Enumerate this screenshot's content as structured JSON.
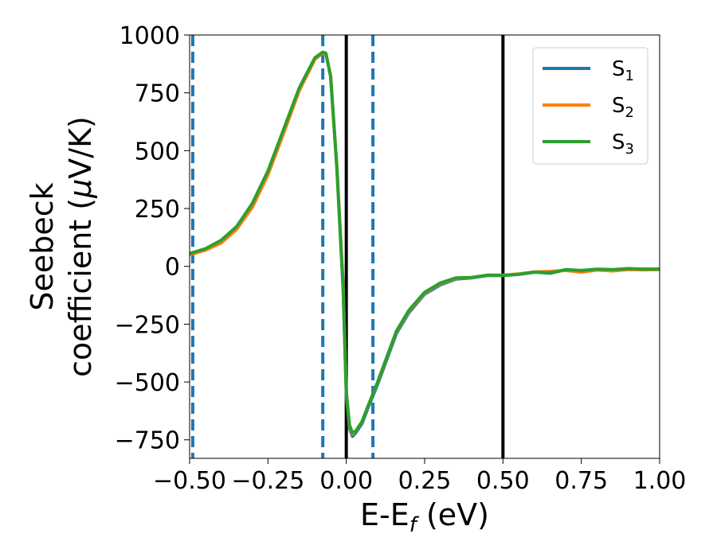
{
  "chart_data": {
    "type": "line",
    "xlabel_main": "E-E",
    "xlabel_sub": "f",
    "xlabel_rest": " (eV)",
    "ylabel_line1": "Seebeck",
    "ylabel_line2_pre": "coefficient  (",
    "ylabel_line2_mu": "μ",
    "ylabel_line2_post": "V/K)",
    "xlim": [
      -0.5,
      1.0
    ],
    "ylim": [
      -830,
      1000
    ],
    "xticks": [
      -0.5,
      -0.25,
      0.0,
      0.25,
      0.5,
      0.75,
      1.0
    ],
    "xtick_labels": [
      "−0.50",
      "−0.25",
      "0.00",
      "0.25",
      "0.50",
      "0.75",
      "1.00"
    ],
    "yticks": [
      -750,
      -500,
      -250,
      0,
      250,
      500,
      750,
      1000
    ],
    "ytick_labels": [
      "−750",
      "−500",
      "−250",
      "0",
      "250",
      "500",
      "750",
      "1000"
    ],
    "vlines_solid": [
      0.0,
      0.5
    ],
    "vlines_dashed": [
      -0.49,
      -0.075,
      0.085
    ],
    "vline_dashed_color": "#1f77b4",
    "vline_solid_color": "#000000",
    "legend_position": "top-right",
    "grid": false,
    "series": [
      {
        "name": "S",
        "sub": "1",
        "color": "#1f77b4",
        "x": [
          -0.5,
          -0.45,
          -0.4,
          -0.35,
          -0.3,
          -0.25,
          -0.2,
          -0.15,
          -0.1,
          -0.075,
          -0.065,
          -0.05,
          -0.03,
          -0.01,
          0.0,
          0.01,
          0.02,
          0.03,
          0.05,
          0.07,
          0.1,
          0.13,
          0.16,
          0.2,
          0.25,
          0.3,
          0.35,
          0.4,
          0.45,
          0.5,
          0.55,
          0.6,
          0.65,
          0.7,
          0.75,
          0.8,
          0.85,
          0.9,
          0.95,
          1.0
        ],
        "y": [
          55,
          75,
          110,
          170,
          270,
          410,
          590,
          770,
          900,
          925,
          920,
          820,
          420,
          -100,
          -560,
          -700,
          -735,
          -720,
          -680,
          -610,
          -510,
          -400,
          -290,
          -200,
          -120,
          -80,
          -55,
          -50,
          -40,
          -40,
          -35,
          -25,
          -30,
          -15,
          -20,
          -15,
          -15,
          -10,
          -12,
          -12
        ]
      },
      {
        "name": "S",
        "sub": "2",
        "color": "#ff7f0e",
        "x": [
          -0.5,
          -0.45,
          -0.4,
          -0.35,
          -0.3,
          -0.25,
          -0.2,
          -0.15,
          -0.1,
          -0.075,
          -0.065,
          -0.05,
          -0.03,
          -0.01,
          0.0,
          0.01,
          0.02,
          0.03,
          0.05,
          0.07,
          0.1,
          0.13,
          0.16,
          0.2,
          0.25,
          0.3,
          0.35,
          0.4,
          0.45,
          0.5,
          0.55,
          0.6,
          0.65,
          0.7,
          0.75,
          0.8,
          0.85,
          0.9,
          0.95,
          1.0
        ],
        "y": [
          50,
          70,
          100,
          160,
          255,
          395,
          575,
          760,
          895,
          922,
          918,
          825,
          430,
          -80,
          -540,
          -690,
          -725,
          -712,
          -672,
          -602,
          -502,
          -392,
          -282,
          -194,
          -115,
          -75,
          -52,
          -48,
          -38,
          -38,
          -33,
          -24,
          -22,
          -18,
          -25,
          -16,
          -20,
          -14,
          -15,
          -14
        ]
      },
      {
        "name": "S",
        "sub": "3",
        "color": "#2ca02c",
        "x": [
          -0.5,
          -0.45,
          -0.4,
          -0.35,
          -0.3,
          -0.25,
          -0.2,
          -0.15,
          -0.1,
          -0.075,
          -0.065,
          -0.05,
          -0.03,
          -0.01,
          0.0,
          0.01,
          0.02,
          0.03,
          0.05,
          0.07,
          0.1,
          0.13,
          0.16,
          0.2,
          0.25,
          0.3,
          0.35,
          0.4,
          0.45,
          0.5,
          0.55,
          0.6,
          0.65,
          0.7,
          0.75,
          0.8,
          0.85,
          0.9,
          0.95,
          1.0
        ],
        "y": [
          55,
          76,
          112,
          172,
          272,
          412,
          592,
          772,
          902,
          926,
          921,
          822,
          425,
          -90,
          -545,
          -685,
          -720,
          -712,
          -672,
          -602,
          -500,
          -390,
          -280,
          -190,
          -112,
          -72,
          -50,
          -48,
          -38,
          -40,
          -34,
          -25,
          -28,
          -14,
          -18,
          -12,
          -14,
          -10,
          -12,
          -12
        ]
      }
    ]
  }
}
